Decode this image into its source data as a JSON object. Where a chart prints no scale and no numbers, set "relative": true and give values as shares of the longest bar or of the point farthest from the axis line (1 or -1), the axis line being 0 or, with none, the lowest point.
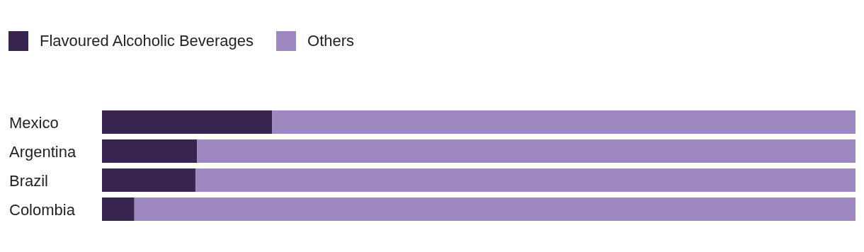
{
  "chart_data": {
    "type": "bar",
    "orientation": "horizontal",
    "stacked": true,
    "relative": true,
    "legend": "top left",
    "categories": [
      "Mexico",
      "Argentina",
      "Brazil",
      "Colombia"
    ],
    "series": [
      {
        "name": "Flavoured Alcoholic Beverages",
        "color": "#37254f",
        "values": [
          0.226,
          0.126,
          0.124,
          0.043
        ]
      },
      {
        "name": "Others",
        "color": "#9e88c0",
        "values": [
          0.774,
          0.874,
          0.876,
          0.957
        ]
      }
    ]
  }
}
